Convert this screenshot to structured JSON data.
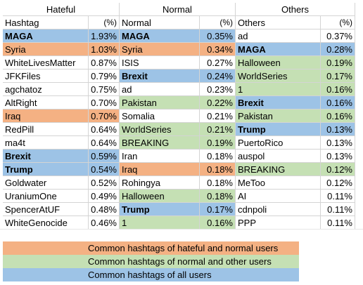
{
  "headers": {
    "hateful": "Hateful",
    "normal": "Normal",
    "others": "Others"
  },
  "subheaders": {
    "hashtag": "Hashtag",
    "pct": "(%)",
    "normal": "Normal",
    "others": "Others"
  },
  "rows": [
    {
      "h": "MAGA",
      "hp": "1.93%",
      "n": "MAGA",
      "np": "0.35%",
      "o": "ad",
      "op": "0.37%"
    },
    {
      "h": "Syria",
      "hp": "1.03%",
      "n": "Syria",
      "np": "0.34%",
      "o": "MAGA",
      "op": "0.28%"
    },
    {
      "h": "WhiteLivesMatter",
      "hp": "0.87%",
      "n": "ISIS",
      "np": "0.27%",
      "o": "Halloween",
      "op": "0.19%"
    },
    {
      "h": "JFKFiles",
      "hp": "0.79%",
      "n": "Brexit",
      "np": "0.24%",
      "o": "WorldSeries",
      "op": "0.17%"
    },
    {
      "h": "agchatoz",
      "hp": "0.75%",
      "n": "ad",
      "np": "0.23%",
      "o": "1",
      "op": "0.16%"
    },
    {
      "h": "AltRight",
      "hp": "0.70%",
      "n": "Pakistan",
      "np": "0.22%",
      "o": "Brexit",
      "op": "0.16%"
    },
    {
      "h": "Iraq",
      "hp": "0.70%",
      "n": "Somalia",
      "np": "0.21%",
      "o": "Pakistan",
      "op": "0.16%"
    },
    {
      "h": "RedPill",
      "hp": "0.64%",
      "n": "WorldSeries",
      "np": "0.21%",
      "o": "Trump",
      "op": "0.13%"
    },
    {
      "h": "ma4t",
      "hp": "0.64%",
      "n": "BREAKING",
      "np": "0.19%",
      "o": "PuertoRico",
      "op": "0.13%"
    },
    {
      "h": "Brexit",
      "hp": "0.59%",
      "n": "Iran",
      "np": "0.18%",
      "o": "auspol",
      "op": "0.13%"
    },
    {
      "h": "Trump",
      "hp": "0.54%",
      "n": "Iraq",
      "np": "0.18%",
      "o": "BREAKING",
      "op": "0.12%"
    },
    {
      "h": "Goldwater",
      "hp": "0.52%",
      "n": "Rohingya",
      "np": "0.18%",
      "o": "MeToo",
      "op": "0.12%"
    },
    {
      "h": "UraniumOne",
      "hp": "0.49%",
      "n": "Halloween",
      "np": "0.18%",
      "o": "AI",
      "op": "0.11%"
    },
    {
      "h": "SpencerAtUF",
      "hp": "0.48%",
      "n": "Trump",
      "np": "0.17%",
      "o": "cdnpoli",
      "op": "0.11%"
    },
    {
      "h": "WhiteGenocide",
      "hp": "0.46%",
      "n": "1",
      "np": "0.16%",
      "o": "PPP",
      "op": "0.11%"
    }
  ],
  "highlight": {
    "hateful": [
      "blue",
      "orange",
      "",
      "",
      "",
      "",
      "orange",
      "",
      "",
      "blue",
      "blue",
      "",
      "",
      "",
      ""
    ],
    "normal": [
      "blue",
      "orange",
      "",
      "blue",
      "",
      "green",
      "",
      "green",
      "green",
      "",
      "orange",
      "",
      "green",
      "blue",
      "green"
    ],
    "others": [
      "",
      "blue",
      "green",
      "green",
      "green",
      "blue",
      "green",
      "blue",
      "",
      "",
      "green",
      "",
      "",
      "",
      ""
    ]
  },
  "bold": {
    "hateful": [
      true,
      false,
      false,
      false,
      false,
      false,
      false,
      false,
      false,
      true,
      true,
      false,
      false,
      false,
      false
    ],
    "normal": [
      true,
      false,
      false,
      true,
      false,
      false,
      false,
      false,
      false,
      false,
      false,
      false,
      false,
      true,
      false
    ],
    "others": [
      false,
      true,
      false,
      false,
      false,
      true,
      false,
      true,
      false,
      false,
      false,
      false,
      false,
      false,
      false
    ]
  },
  "legend": [
    {
      "color": "orange",
      "label": "Common hashtags of hateful and normal users"
    },
    {
      "color": "green",
      "label": "Common hashtags of normal and other users"
    },
    {
      "color": "blue",
      "label": "Common hashtags of all users"
    }
  ],
  "colors": {
    "orange": "#f4b183",
    "green": "#c5e0b4",
    "blue": "#9dc3e6",
    "grid": "#d4d4d4"
  }
}
